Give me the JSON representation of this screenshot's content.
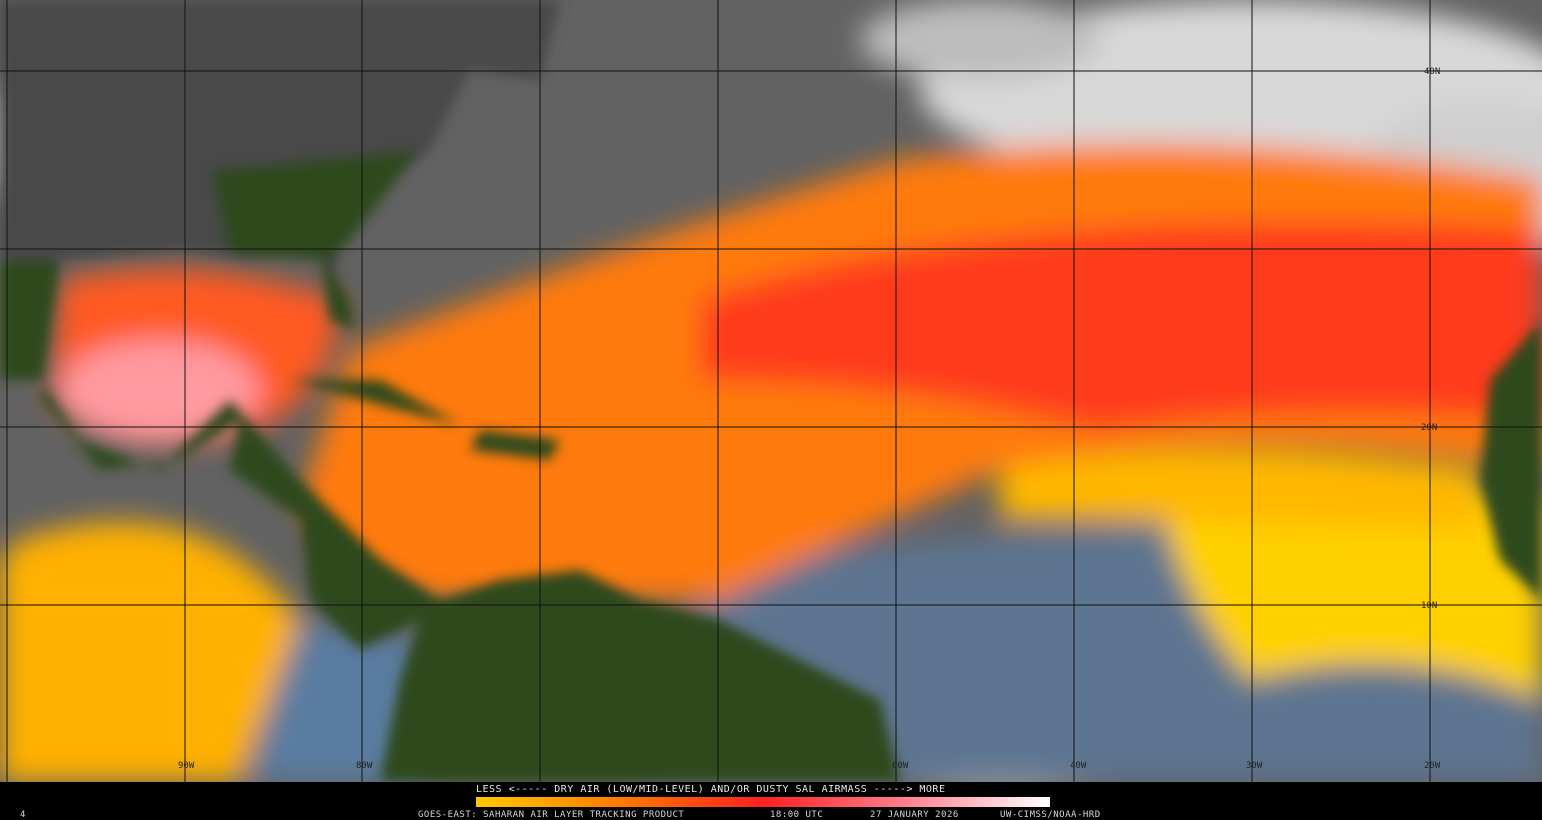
{
  "header": {
    "legend_text": "LESS <----- DRY AIR (LOW/MID-LEVEL) AND/OR DUSTY SAL AIRMASS -----> MORE",
    "product": "GOES-EAST: SAHARAN AIR LAYER TRACKING PRODUCT",
    "time": "18:00 UTC",
    "date": "27 JANUARY 2026",
    "credit": "UW-CIMSS/NOAA-HRD",
    "frame": "4"
  },
  "map": {
    "lat_labels": [
      "40N",
      "20N",
      "10N"
    ],
    "lon_labels": [
      "90W",
      "80W",
      "60W",
      "40W",
      "30W",
      "20W"
    ]
  }
}
